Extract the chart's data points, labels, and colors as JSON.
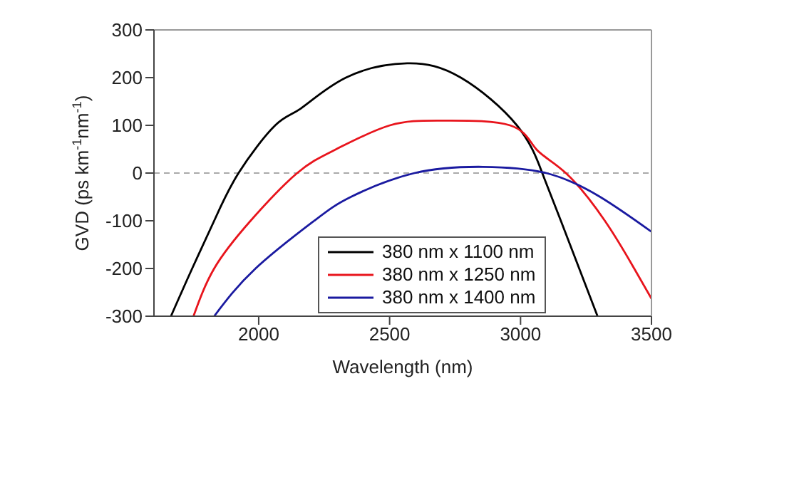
{
  "chart_data": {
    "type": "line",
    "xlabel": "Wavelength (nm)",
    "ylabel": "GVD (ps km$^{-1}$nm$^{-1}$)",
    "xlim": [
      1600,
      3500
    ],
    "xticks": [
      2000,
      2500,
      3000,
      3500
    ],
    "ylim": [
      -300,
      300
    ],
    "yticks": [
      -300,
      -200,
      -100,
      0,
      100,
      200,
      300
    ],
    "legend": "bottom",
    "line_style": "solid",
    "marker": "none",
    "ref_lines": [
      {
        "axis": "y",
        "value": 0,
        "color": "#aaaaaa",
        "line_style": "dashed"
      }
    ],
    "series": [
      {
        "name": "380 nm x 1100 nm",
        "color": "#000000",
        "x": [
          1665,
          1746,
          1830,
          1923,
          2063,
          2160,
          2333,
          2567,
          2772,
          2986,
          3083,
          3154,
          3294
        ],
        "values": [
          -300,
          -200,
          -100,
          0,
          100,
          135,
          200,
          230,
          200,
          100,
          0,
          -100,
          -300
        ]
      },
      {
        "name": "380 nm x 1250 nm",
        "color": "#e8141c",
        "x": [
          1751,
          1830,
          1969,
          2147,
          2296,
          2501,
          2707,
          2960,
          3060,
          3173,
          3322,
          3434,
          3500
        ],
        "values": [
          -300,
          -200,
          -100,
          0,
          50,
          100,
          110,
          100,
          50,
          0,
          -100,
          -200,
          -263
        ]
      },
      {
        "name": "380 nm x 1400 nm",
        "color": "#1a1aa0",
        "x": [
          1830,
          1988,
          2212,
          2352,
          2595,
          2856,
          3098,
          3304,
          3500
        ],
        "values": [
          -300,
          -200,
          -100,
          -50,
          0,
          13,
          0,
          -50,
          -123
        ]
      }
    ]
  }
}
